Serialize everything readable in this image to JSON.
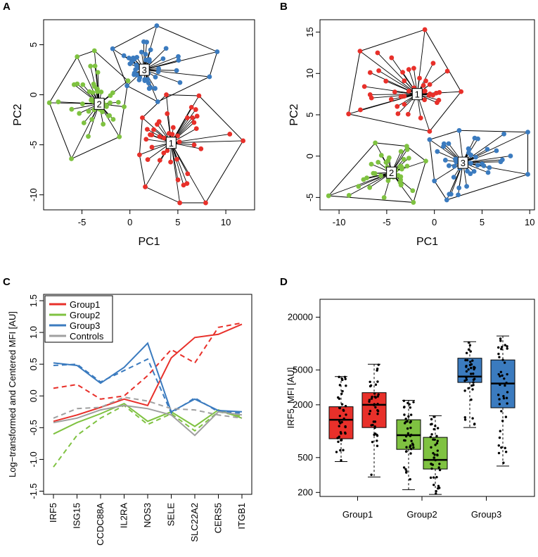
{
  "panels": {
    "a": "A",
    "b": "B",
    "c": "C",
    "d": "D"
  },
  "colors": {
    "group1": "#e8302a",
    "group2": "#7fc241",
    "group3": "#3b7bbf",
    "controls": "#a0a0a0"
  },
  "chart_data": [
    {
      "type": "scatter",
      "panel": "A",
      "xlabel": "PC1",
      "ylabel": "PC2",
      "xlim": [
        -9,
        13
      ],
      "ylim": [
        -11.5,
        7.5
      ],
      "xticks": [
        -5,
        0,
        5,
        10
      ],
      "yticks": [
        -10,
        -5,
        0,
        5
      ],
      "clusters": [
        {
          "id": "1",
          "group": "group1",
          "centroid": [
            4.3,
            -4.8
          ],
          "hull": [
            [
              1.3,
              -2.3
            ],
            [
              3.8,
              0.0
            ],
            [
              7.2,
              -0.1
            ],
            [
              11.8,
              -4.6
            ],
            [
              7.9,
              -10.8
            ],
            [
              5.2,
              -10.8
            ],
            [
              1.6,
              -9.2
            ],
            [
              1.0,
              -6.0
            ]
          ]
        },
        {
          "id": "2",
          "group": "group2",
          "centroid": [
            -3.2,
            -0.9
          ],
          "hull": [
            [
              -5.5,
              3.8
            ],
            [
              -3.7,
              4.4
            ],
            [
              -0.2,
              1.4
            ],
            [
              -0.6,
              -1.2
            ],
            [
              -1.1,
              -4.2
            ],
            [
              -6.1,
              -6.4
            ],
            [
              -8.4,
              -0.8
            ]
          ]
        },
        {
          "id": "3",
          "group": "group3",
          "centroid": [
            1.5,
            2.5
          ],
          "hull": [
            [
              -1.8,
              4.6
            ],
            [
              2.8,
              6.9
            ],
            [
              9.1,
              4.3
            ],
            [
              8.3,
              1.8
            ],
            [
              2.9,
              -0.7
            ],
            [
              -0.3,
              0.9
            ]
          ]
        }
      ]
    },
    {
      "type": "scatter",
      "panel": "B",
      "xlabel": "PC1",
      "ylabel": "PC2",
      "xlim": [
        -12,
        10.5
      ],
      "ylim": [
        -6.5,
        16.5
      ],
      "xticks": [
        -10,
        -5,
        0,
        5,
        10
      ],
      "yticks": [
        -5,
        0,
        5,
        10,
        15
      ],
      "clusters": [
        {
          "id": "1",
          "group": "group1",
          "centroid": [
            -1.8,
            7.5
          ],
          "hull": [
            [
              -7.8,
              12.7
            ],
            [
              -1.0,
              15.3
            ],
            [
              2.8,
              7.8
            ],
            [
              -0.5,
              3.0
            ],
            [
              -9.0,
              5.1
            ]
          ]
        },
        {
          "id": "2",
          "group": "group2",
          "centroid": [
            -4.5,
            -2.0
          ],
          "hull": [
            [
              -6.2,
              1.6
            ],
            [
              -2.9,
              1.2
            ],
            [
              -0.9,
              -0.6
            ],
            [
              -2.2,
              -5.6
            ],
            [
              -11.1,
              -4.8
            ]
          ]
        },
        {
          "id": "3",
          "group": "group3",
          "centroid": [
            3.0,
            -0.8
          ],
          "hull": [
            [
              -0.5,
              2.0
            ],
            [
              2.6,
              3.1
            ],
            [
              9.8,
              2.9
            ],
            [
              9.8,
              -2.2
            ],
            [
              1.3,
              -5.3
            ],
            [
              0.0,
              -3.0
            ]
          ]
        }
      ]
    },
    {
      "type": "line",
      "panel": "C",
      "ylabel": "Log−transformed and Centered MFI [AU]",
      "categories": [
        "IRF5",
        "ISG15",
        "CCDC88A",
        "IL2RA",
        "NOS3",
        "SELE",
        "SLC22A2",
        "CERS5",
        "ITGB1"
      ],
      "ylim": [
        -1.55,
        1.6
      ],
      "yticks": [
        "-1.5",
        "-1.0",
        "-0.5",
        "0.0",
        "0.5",
        "1.0",
        "1.5"
      ],
      "legend": [
        "Group1",
        "Group2",
        "Group3",
        "Controls"
      ],
      "series": [
        {
          "name": "Group1",
          "group": "group1",
          "style": "solid",
          "values": [
            -0.4,
            -0.3,
            -0.18,
            -0.05,
            -0.15,
            0.6,
            0.92,
            0.97,
            1.13
          ]
        },
        {
          "name": "Group1",
          "group": "group1",
          "style": "dashed",
          "values": [
            0.12,
            0.18,
            -0.05,
            0.0,
            0.32,
            0.73,
            0.52,
            1.08,
            1.15
          ]
        },
        {
          "name": "Group2",
          "group": "group2",
          "style": "solid",
          "values": [
            -0.6,
            -0.42,
            -0.28,
            -0.12,
            -0.4,
            -0.25,
            -0.48,
            -0.22,
            -0.35
          ]
        },
        {
          "name": "Group2",
          "group": "group2",
          "style": "dashed",
          "values": [
            -1.12,
            -0.62,
            -0.35,
            -0.15,
            -0.45,
            -0.28,
            -0.55,
            -0.25,
            -0.32
          ]
        },
        {
          "name": "Group3",
          "group": "group3",
          "style": "solid",
          "values": [
            0.52,
            0.48,
            0.2,
            0.45,
            0.83,
            -0.25,
            -0.05,
            -0.23,
            -0.25
          ]
        },
        {
          "name": "Group3",
          "group": "group3",
          "style": "dashed",
          "values": [
            0.48,
            0.5,
            0.22,
            0.4,
            0.58,
            -0.27,
            -0.03,
            -0.25,
            -0.27
          ]
        },
        {
          "name": "Controls",
          "group": "controls",
          "style": "solid",
          "values": [
            -0.42,
            -0.35,
            -0.22,
            -0.15,
            -0.2,
            -0.3,
            -0.62,
            -0.25,
            -0.3
          ]
        },
        {
          "name": "Controls",
          "group": "controls",
          "style": "dashed",
          "values": [
            -0.35,
            -0.2,
            -0.18,
            -0.02,
            -0.08,
            -0.2,
            -0.22,
            -0.3,
            -0.35
          ]
        }
      ]
    },
    {
      "type": "box",
      "panel": "D",
      "ylabel": "IRF5, MFI [AU]",
      "yscale": "log",
      "ylim": [
        180,
        32000
      ],
      "yticks": [
        200,
        500,
        2000,
        5000,
        20000
      ],
      "categories": [
        "Group1",
        "Group2",
        "Group3"
      ],
      "boxes": [
        {
          "group": "group1",
          "min": 450,
          "q1": 820,
          "median": 1350,
          "q3": 1900,
          "max": 4200
        },
        {
          "group": "group1",
          "min": 300,
          "q1": 1100,
          "median": 2000,
          "q3": 2750,
          "max": 5800
        },
        {
          "group": "group2",
          "min": 215,
          "q1": 620,
          "median": 900,
          "q3": 1350,
          "max": 2250
        },
        {
          "group": "group2",
          "min": 190,
          "q1": 370,
          "median": 470,
          "q3": 850,
          "max": 1500
        },
        {
          "group": "group3",
          "min": 1100,
          "q1": 3600,
          "median": 4200,
          "q3": 6800,
          "max": 10500
        },
        {
          "group": "group3",
          "min": 400,
          "q1": 1850,
          "median": 3500,
          "q3": 6500,
          "max": 12200
        }
      ]
    }
  ]
}
